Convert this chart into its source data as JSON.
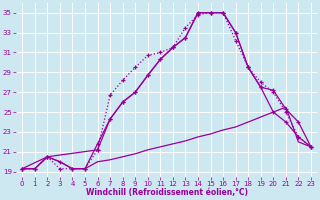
{
  "background_color": "#cde8f0",
  "line_color": "#990099",
  "grid_color": "#ffffff",
  "xlabel": "Windchill (Refroidissement éolien,°C)",
  "xlim": [
    -0.5,
    23.5
  ],
  "ylim": [
    18.5,
    36.0
  ],
  "yticks": [
    19,
    21,
    23,
    25,
    27,
    29,
    31,
    33,
    35
  ],
  "xticks": [
    0,
    1,
    2,
    3,
    4,
    5,
    6,
    7,
    8,
    9,
    10,
    11,
    12,
    13,
    14,
    15,
    16,
    17,
    18,
    19,
    20,
    21,
    22,
    23
  ],
  "curve_dotted_x": [
    0,
    1,
    2,
    3,
    4,
    5,
    6,
    7,
    8,
    9,
    10,
    11,
    12,
    13,
    14,
    15,
    16,
    17,
    18,
    19,
    20,
    21,
    22,
    23
  ],
  "curve_dotted_y": [
    19.3,
    19.3,
    20.5,
    19.3,
    19.3,
    19.3,
    21.2,
    26.7,
    28.2,
    29.5,
    30.7,
    31.0,
    31.5,
    33.5,
    34.8,
    35.0,
    35.0,
    32.2,
    29.5,
    28.0,
    27.0,
    25.0,
    22.5,
    21.5
  ],
  "curve_solid_x": [
    0,
    1,
    2,
    3,
    4,
    5,
    6,
    7,
    8,
    9,
    10,
    11,
    12,
    13,
    14,
    15,
    16,
    17,
    18,
    19,
    20,
    21,
    22,
    23
  ],
  "curve_solid_y": [
    19.3,
    19.3,
    20.5,
    20.0,
    19.3,
    19.3,
    21.8,
    24.3,
    26.0,
    27.0,
    28.7,
    30.3,
    31.5,
    32.5,
    35.0,
    35.0,
    35.0,
    33.0,
    29.5,
    27.5,
    25.0,
    24.0,
    22.5,
    21.5
  ],
  "curve_mid_x": [
    0,
    2,
    6,
    7,
    8,
    9,
    10,
    11,
    12,
    13,
    14,
    15,
    16,
    17,
    18,
    19,
    20,
    21,
    22,
    23
  ],
  "curve_mid_y": [
    19.3,
    20.5,
    21.2,
    24.3,
    26.0,
    27.0,
    28.7,
    30.3,
    31.5,
    32.5,
    35.0,
    35.0,
    35.0,
    33.0,
    29.5,
    27.5,
    27.2,
    25.3,
    24.0,
    21.5
  ],
  "curve_flat_x": [
    0,
    1,
    2,
    3,
    4,
    5,
    6,
    7,
    8,
    9,
    10,
    11,
    12,
    13,
    14,
    15,
    16,
    17,
    18,
    19,
    20,
    21,
    22,
    23
  ],
  "curve_flat_y": [
    19.3,
    19.3,
    20.5,
    20.0,
    19.3,
    19.3,
    20.0,
    20.2,
    20.5,
    20.8,
    21.2,
    21.5,
    21.8,
    22.1,
    22.5,
    22.8,
    23.2,
    23.5,
    24.0,
    24.5,
    25.0,
    25.5,
    22.0,
    21.5
  ]
}
